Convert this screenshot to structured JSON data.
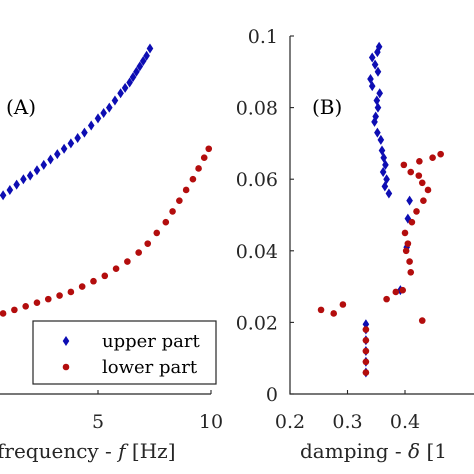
{
  "chart_data": [
    {
      "panel": "(A)",
      "type": "scatter",
      "xlabel": "frequency - f [Hz]",
      "ylabel": "",
      "xlim": [
        0,
        10
      ],
      "ylim": [
        0,
        0.1
      ],
      "xticks": [
        "5",
        "10"
      ],
      "xtick_values": [
        5,
        10
      ],
      "legend": {
        "placement": "bottom-right",
        "entries": [
          "upper part",
          "lower part"
        ]
      },
      "series": [
        {
          "name": "upper part",
          "marker": "diamond",
          "color": "#0d0db3",
          "points": [
            [
              0,
              0.006
            ],
            [
              0,
              0.009
            ],
            [
              0,
              0.012
            ],
            [
              0,
              0.015
            ],
            [
              0,
              0.018
            ],
            [
              0,
              0.021
            ],
            [
              0,
              0.029
            ],
            [
              0,
              0.041
            ],
            [
              0,
              0.049
            ],
            [
              0.2,
              0.052
            ],
            [
              0.5,
              0.054
            ],
            [
              0.8,
              0.0555
            ],
            [
              1.1,
              0.057
            ],
            [
              1.4,
              0.0585
            ],
            [
              1.7,
              0.06
            ],
            [
              2.0,
              0.061
            ],
            [
              2.3,
              0.0625
            ],
            [
              2.6,
              0.064
            ],
            [
              2.9,
              0.0655
            ],
            [
              3.2,
              0.067
            ],
            [
              3.5,
              0.0685
            ],
            [
              3.8,
              0.07
            ],
            [
              4.1,
              0.0715
            ],
            [
              4.4,
              0.073
            ],
            [
              4.7,
              0.075
            ],
            [
              5.0,
              0.077
            ],
            [
              5.25,
              0.0785
            ],
            [
              5.5,
              0.08
            ],
            [
              5.75,
              0.082
            ],
            [
              6.0,
              0.084
            ],
            [
              6.2,
              0.0855
            ],
            [
              6.4,
              0.087
            ],
            [
              6.55,
              0.0885
            ],
            [
              6.7,
              0.09
            ],
            [
              6.85,
              0.0915
            ],
            [
              7.0,
              0.093
            ],
            [
              7.15,
              0.0945
            ],
            [
              7.3,
              0.0965
            ]
          ]
        },
        {
          "name": "lower part",
          "marker": "circle",
          "color": "#b30d0d",
          "points": [
            [
              0,
              0.006
            ],
            [
              0,
              0.009
            ],
            [
              0,
              0.012
            ],
            [
              0,
              0.015
            ],
            [
              0,
              0.018
            ],
            [
              0,
              0.021
            ],
            [
              0.3,
              0.0215
            ],
            [
              0.8,
              0.0225
            ],
            [
              1.3,
              0.0235
            ],
            [
              1.8,
              0.0245
            ],
            [
              2.3,
              0.0255
            ],
            [
              2.8,
              0.0265
            ],
            [
              3.3,
              0.0275
            ],
            [
              3.8,
              0.0285
            ],
            [
              4.3,
              0.03
            ],
            [
              4.8,
              0.0315
            ],
            [
              5.3,
              0.033
            ],
            [
              5.8,
              0.035
            ],
            [
              6.3,
              0.037
            ],
            [
              6.8,
              0.0395
            ],
            [
              7.2,
              0.042
            ],
            [
              7.6,
              0.045
            ],
            [
              8.0,
              0.048
            ],
            [
              8.3,
              0.051
            ],
            [
              8.6,
              0.054
            ],
            [
              8.9,
              0.057
            ],
            [
              9.2,
              0.06
            ],
            [
              9.45,
              0.063
            ],
            [
              9.7,
              0.066
            ],
            [
              9.9,
              0.0685
            ]
          ]
        }
      ]
    },
    {
      "panel": "(B)",
      "type": "scatter",
      "xlabel": "damping - δ [1",
      "ylabel": "",
      "xlim": [
        0.2,
        0.5
      ],
      "ylim": [
        0,
        0.1
      ],
      "xticks": [
        "0.2",
        "0.3",
        "0.4"
      ],
      "xtick_values": [
        0.2,
        0.3,
        0.4
      ],
      "yticks": [
        "0",
        "0.02",
        "0.04",
        "0.06",
        "0.08",
        "0.1"
      ],
      "ytick_values": [
        0,
        0.02,
        0.04,
        0.06,
        0.08,
        0.1
      ],
      "series": [
        {
          "name": "upper part",
          "marker": "diamond",
          "color": "#0d0db3",
          "points": [
            [
              0.332,
              0.006
            ],
            [
              0.332,
              0.009
            ],
            [
              0.332,
              0.012
            ],
            [
              0.332,
              0.015
            ],
            [
              0.332,
              0.018
            ],
            [
              0.332,
              0.0195
            ],
            [
              0.392,
              0.029
            ],
            [
              0.403,
              0.041
            ],
            [
              0.405,
              0.049
            ],
            [
              0.408,
              0.054
            ],
            [
              0.372,
              0.056
            ],
            [
              0.365,
              0.058
            ],
            [
              0.368,
              0.06
            ],
            [
              0.362,
              0.062
            ],
            [
              0.366,
              0.064
            ],
            [
              0.363,
              0.066
            ],
            [
              0.36,
              0.068
            ],
            [
              0.358,
              0.071
            ],
            [
              0.352,
              0.073
            ],
            [
              0.347,
              0.076
            ],
            [
              0.349,
              0.0775
            ],
            [
              0.353,
              0.08
            ],
            [
              0.351,
              0.082
            ],
            [
              0.356,
              0.084
            ],
            [
              0.343,
              0.086
            ],
            [
              0.34,
              0.088
            ],
            [
              0.353,
              0.09
            ],
            [
              0.348,
              0.092
            ],
            [
              0.343,
              0.094
            ],
            [
              0.352,
              0.0955
            ],
            [
              0.355,
              0.097
            ]
          ]
        },
        {
          "name": "lower part",
          "marker": "circle",
          "color": "#b30d0d",
          "points": [
            [
              0.332,
              0.006
            ],
            [
              0.332,
              0.009
            ],
            [
              0.332,
              0.012
            ],
            [
              0.332,
              0.015
            ],
            [
              0.332,
              0.018
            ],
            [
              0.254,
              0.0235
            ],
            [
              0.276,
              0.0225
            ],
            [
              0.292,
              0.025
            ],
            [
              0.368,
              0.0265
            ],
            [
              0.384,
              0.0285
            ],
            [
              0.396,
              0.029
            ],
            [
              0.43,
              0.0205
            ],
            [
              0.41,
              0.034
            ],
            [
              0.408,
              0.037
            ],
            [
              0.402,
              0.04
            ],
            [
              0.405,
              0.042
            ],
            [
              0.4,
              0.045
            ],
            [
              0.412,
              0.048
            ],
            [
              0.42,
              0.051
            ],
            [
              0.432,
              0.054
            ],
            [
              0.44,
              0.057
            ],
            [
              0.43,
              0.059
            ],
            [
              0.424,
              0.061
            ],
            [
              0.41,
              0.062
            ],
            [
              0.398,
              0.064
            ],
            [
              0.425,
              0.065
            ],
            [
              0.448,
              0.066
            ],
            [
              0.462,
              0.067
            ]
          ]
        }
      ]
    }
  ]
}
